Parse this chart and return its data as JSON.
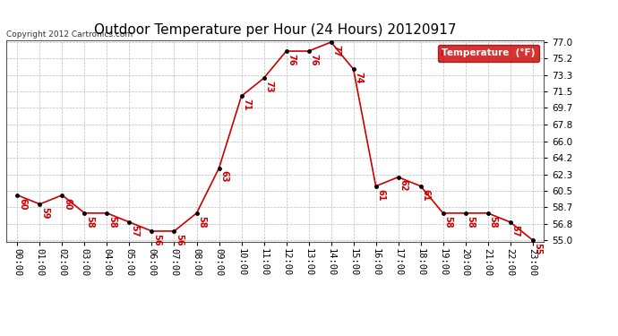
{
  "title": "Outdoor Temperature per Hour (24 Hours) 20120917",
  "copyright": "Copyright 2012 Cartronics.com",
  "legend_label": "Temperature  (°F)",
  "hours": [
    "00:00",
    "01:00",
    "02:00",
    "03:00",
    "04:00",
    "05:00",
    "06:00",
    "07:00",
    "08:00",
    "09:00",
    "10:00",
    "11:00",
    "12:00",
    "13:00",
    "14:00",
    "15:00",
    "16:00",
    "17:00",
    "18:00",
    "19:00",
    "20:00",
    "21:00",
    "22:00",
    "23:00"
  ],
  "temperatures": [
    60,
    59,
    60,
    58,
    58,
    57,
    56,
    56,
    58,
    63,
    71,
    73,
    76,
    76,
    77,
    74,
    61,
    62,
    61,
    58,
    58,
    58,
    57,
    55
  ],
  "ylim_min": 55.0,
  "ylim_max": 77.0,
  "yticks": [
    55.0,
    56.8,
    58.7,
    60.5,
    62.3,
    64.2,
    66.0,
    67.8,
    69.7,
    71.5,
    73.3,
    75.2,
    77.0
  ],
  "line_color": "#cc0000",
  "marker_color": "#000000",
  "label_color": "#cc0000",
  "grid_color": "#bbbbbb",
  "bg_color": "#ffffff",
  "title_fontsize": 11,
  "label_fontsize": 7,
  "tick_fontsize": 7.5,
  "copyright_fontsize": 6.5,
  "legend_bg": "#cc0000",
  "legend_text_color": "#ffffff"
}
